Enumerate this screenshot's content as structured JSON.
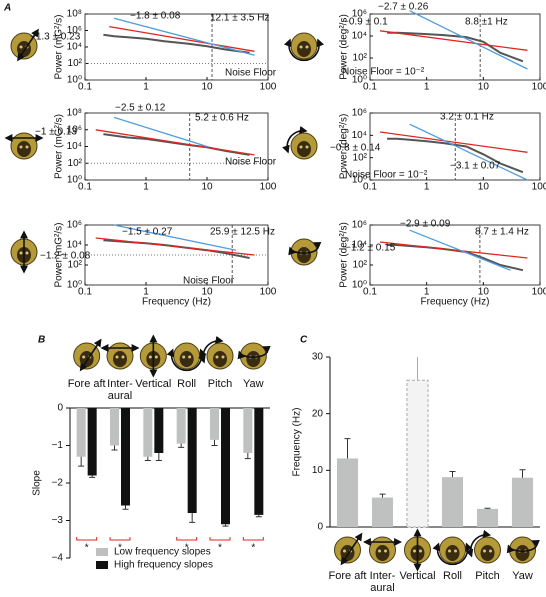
{
  "panel_labels": [
    "A",
    "B",
    "C"
  ],
  "chart_data": [
    {
      "type": "line",
      "xlog": true,
      "ylog": true,
      "xlim": [
        0.1,
        100
      ],
      "xticks": [
        0.1,
        1,
        10,
        100
      ],
      "ylim": [
        1,
        100000000
      ],
      "yticks": [
        {
          "value": 1,
          "label": "10⁰"
        },
        {
          "value": 100,
          "label": "10²"
        },
        {
          "value": 10000,
          "label": "10⁴"
        },
        {
          "value": 1000000,
          "label": "10⁶"
        },
        {
          "value": 100000000,
          "label": "10⁸"
        }
      ],
      "ylabel": "Power (mG²/s)",
      "cutoff": 12.1,
      "noise_floor": 100,
      "series": [
        {
          "color": "#555555",
          "x": [
            0.2,
            0.3,
            0.5,
            1,
            2,
            5,
            10,
            20,
            50
          ],
          "values": [
            300000,
            200000,
            150000,
            100000,
            50000,
            25000,
            12000,
            5000,
            2000
          ]
        },
        {
          "color": "#e0261f",
          "x": [
            0.25,
            60
          ],
          "values": [
            3000000,
            3000
          ]
        },
        {
          "color": "#4d9de0",
          "x": [
            0.3,
            60
          ],
          "values": [
            30000000,
            1000
          ]
        }
      ],
      "annotations": [
        "−1.8 ± 0.08",
        "−1.3 ± 0.23",
        "12.1 ± 3.5 Hz",
        "Noise Floor"
      ]
    },
    {
      "type": "line",
      "xlog": true,
      "ylog": true,
      "xlim": [
        0.1,
        100
      ],
      "xticks": [
        0.1,
        1,
        10,
        100
      ],
      "ylim": [
        1,
        1000000
      ],
      "yticks": [
        {
          "value": 1,
          "label": "10⁰"
        },
        {
          "value": 100,
          "label": "10²"
        },
        {
          "value": 10000,
          "label": "10⁴"
        },
        {
          "value": 1000000,
          "label": "10⁶"
        }
      ],
      "ylabel": "Power (deg²/s)",
      "cutoff": 8.8,
      "series": [
        {
          "color": "#555555",
          "x": [
            0.2,
            0.3,
            0.5,
            1,
            2,
            5,
            10,
            20,
            50
          ],
          "values": [
            20000,
            20000,
            18000,
            15000,
            12000,
            8000,
            3000,
            300,
            50
          ]
        },
        {
          "color": "#e0261f",
          "x": [
            0.15,
            60
          ],
          "values": [
            30000,
            500
          ]
        },
        {
          "color": "#4d9de0",
          "x": [
            0.5,
            60
          ],
          "values": [
            2000000,
            10
          ]
        }
      ],
      "annotations": [
        "−2.7 ± 0.26",
        "−0.9 ± 0.1",
        "8.8 ±1 Hz",
        "Noise Floor = 10⁻²"
      ]
    },
    {
      "type": "line",
      "xlog": true,
      "ylog": true,
      "xlim": [
        0.1,
        100
      ],
      "xticks": [
        0.1,
        1,
        10,
        100
      ],
      "ylim": [
        1,
        100000000
      ],
      "yticks": [
        {
          "value": 1,
          "label": "10⁰"
        },
        {
          "value": 100,
          "label": "10²"
        },
        {
          "value": 10000,
          "label": "10⁴"
        },
        {
          "value": 1000000,
          "label": "10⁶"
        },
        {
          "value": 100000000,
          "label": "10⁸"
        }
      ],
      "ylabel": "Power (mG²/s)",
      "cutoff": 5.2,
      "noise_floor": 100,
      "series": [
        {
          "color": "#555555",
          "x": [
            0.2,
            0.3,
            0.5,
            1,
            2,
            5,
            10,
            20,
            50
          ],
          "values": [
            300000,
            200000,
            120000,
            80000,
            40000,
            15000,
            8000,
            3000,
            1000
          ]
        },
        {
          "color": "#e0261f",
          "x": [
            0.15,
            60
          ],
          "values": [
            1000000,
            1000
          ]
        },
        {
          "color": "#4d9de0",
          "x": [
            0.3,
            10
          ],
          "values": [
            30000000,
            10000
          ]
        }
      ],
      "annotations": [
        "−2.5 ± 0.12",
        "−1 ± 0.13",
        "5.2 ± 0.6 Hz",
        "Noise Floor"
      ]
    },
    {
      "type": "line",
      "xlog": true,
      "ylog": true,
      "xlim": [
        0.1,
        100
      ],
      "xticks": [
        0.1,
        1,
        10,
        100
      ],
      "ylim": [
        1,
        1000000
      ],
      "yticks": [
        {
          "value": 1,
          "label": "10⁰"
        },
        {
          "value": 100,
          "label": "10²"
        },
        {
          "value": 10000,
          "label": "10⁴"
        },
        {
          "value": 1000000,
          "label": "10⁶"
        }
      ],
      "ylabel": "Power (deg²/s)",
      "cutoff": 3.2,
      "series": [
        {
          "color": "#555555",
          "x": [
            0.2,
            0.3,
            0.5,
            1,
            2,
            5,
            10,
            20,
            50
          ],
          "values": [
            5000,
            5000,
            4000,
            3000,
            2000,
            1000,
            200,
            30,
            5
          ]
        },
        {
          "color": "#e0261f",
          "x": [
            0.15,
            60
          ],
          "values": [
            20000,
            300
          ]
        },
        {
          "color": "#4d9de0",
          "x": [
            0.5,
            60
          ],
          "values": [
            100000,
            1
          ]
        }
      ],
      "annotations": [
        "3.2 ± 0.1 Hz",
        "−0.8 ± 0.14",
        "−3.1 ± 0.07",
        "Noise Floor = 10⁻²"
      ]
    },
    {
      "type": "line",
      "xlog": true,
      "ylog": true,
      "xlim": [
        0.1,
        100
      ],
      "xticks": [
        0.1,
        1,
        10,
        100
      ],
      "ylim": [
        1,
        1000000
      ],
      "yticks": [
        {
          "value": 1,
          "label": "10⁰"
        },
        {
          "value": 100,
          "label": "10²"
        },
        {
          "value": 10000,
          "label": "10⁴"
        },
        {
          "value": 1000000,
          "label": "10⁶"
        }
      ],
      "ylabel": "Power (mG²/s)",
      "xlabel": "Frequency (Hz)",
      "cutoff": 25.9,
      "noise_floor": 1000,
      "series": [
        {
          "color": "#555555",
          "x": [
            0.2,
            0.3,
            0.5,
            1,
            2,
            5,
            10,
            20,
            50
          ],
          "values": [
            30000,
            25000,
            20000,
            15000,
            10000,
            5000,
            3000,
            1500,
            500
          ]
        },
        {
          "color": "#e0261f",
          "x": [
            0.15,
            60
          ],
          "values": [
            50000,
            1000
          ]
        },
        {
          "color": "#4d9de0",
          "x": [
            0.3,
            30
          ],
          "values": [
            1000000,
            3000
          ]
        }
      ],
      "annotations": [
        "−1.5 ± 0.27",
        "−1.2 ± 0.08",
        "25.9 ± 12.5 Hz",
        "Noise Floor"
      ]
    },
    {
      "type": "line",
      "xlog": true,
      "ylog": true,
      "xlim": [
        0.1,
        100
      ],
      "xticks": [
        0.1,
        1,
        10,
        100
      ],
      "ylim": [
        1,
        1000000
      ],
      "yticks": [
        {
          "value": 1,
          "label": "10⁰"
        },
        {
          "value": 100,
          "label": "10²"
        },
        {
          "value": 10000,
          "label": "10⁴"
        },
        {
          "value": 1000000,
          "label": "10⁶"
        }
      ],
      "ylabel": "Power (deg²/s)",
      "xlabel": "Frequency (Hz)",
      "cutoff": 8.7,
      "series": [
        {
          "color": "#555555",
          "x": [
            0.2,
            0.3,
            0.5,
            1,
            2,
            5,
            10,
            20,
            50
          ],
          "values": [
            10000,
            10000,
            8000,
            6000,
            4000,
            2000,
            500,
            100,
            30
          ]
        },
        {
          "color": "#e0261f",
          "x": [
            0.15,
            60
          ],
          "values": [
            20000,
            500
          ]
        },
        {
          "color": "#4d9de0",
          "x": [
            0.5,
            30
          ],
          "values": [
            300000,
            30
          ]
        }
      ],
      "annotations": [
        "−2.9 ± 0.09",
        "−1.2 ± 0.15",
        "8.7 ± 1.4 Hz"
      ]
    },
    {
      "type": "bar",
      "ylabel": "Slope",
      "ylim": [
        -4,
        0
      ],
      "yticks": [
        0,
        {
          "value": -1,
          "label": "−1"
        },
        {
          "value": -2,
          "label": "−2"
        },
        {
          "value": -3,
          "label": "−3"
        },
        {
          "value": -4,
          "label": "−4"
        }
      ],
      "categories": [
        "Fore aft",
        "Inter-aural",
        "Vertical",
        "Roll",
        "Pitch",
        "Yaw"
      ],
      "series": [
        {
          "name": "Low frequency slopes",
          "color": "#bfc1c1",
          "values": [
            -1.3,
            -1.0,
            -1.3,
            -0.95,
            -0.85,
            -1.2
          ],
          "errors": [
            0.25,
            0.12,
            0.1,
            0.1,
            0.15,
            0.15
          ]
        },
        {
          "name": "High frequency slopes",
          "color": "#111111",
          "values": [
            -1.8,
            -2.6,
            -1.2,
            -2.8,
            -3.1,
            -2.85
          ],
          "errors": [
            0.05,
            0.1,
            0.2,
            0.25,
            0.05,
            0.05
          ]
        }
      ],
      "significance": [
        "*",
        "*",
        null,
        "*",
        "*",
        "*"
      ]
    },
    {
      "type": "bar",
      "ylabel": "Frequency (Hz)",
      "ylim": [
        0,
        30
      ],
      "yticks": [
        0,
        10,
        20,
        30
      ],
      "categories": [
        "Fore aft",
        "Inter-aural",
        "Vertical",
        "Roll",
        "Pitch",
        "Yaw"
      ],
      "color": "#bfc1c1",
      "values": [
        12.1,
        5.2,
        25.9,
        8.8,
        3.2,
        8.7
      ],
      "errors": [
        3.5,
        0.6,
        12.5,
        1,
        0.1,
        1.4
      ],
      "dashed": [
        false,
        false,
        true,
        false,
        false,
        false
      ]
    }
  ]
}
